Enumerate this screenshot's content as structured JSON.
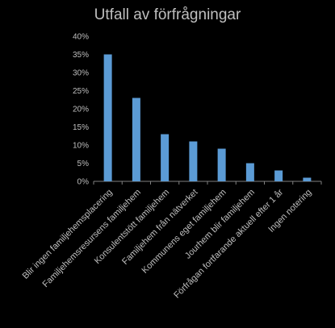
{
  "chart_data": {
    "type": "bar",
    "title": "Utfall av förfrågningar",
    "categories": [
      "Blir ingen familjehemsplacering",
      "Familjehemsresursens familjehem",
      "Konsulentstött familjehem",
      "Familjehem från nätverket",
      "Kommunens eget familjehem",
      "Jourhem blir familjehem",
      "Förfrågan fortfarande aktuell efter 1 år",
      "Ingen notering"
    ],
    "values": [
      35,
      23,
      13,
      11,
      9,
      5,
      3,
      1
    ],
    "value_unit": "%",
    "ylim": [
      0,
      40
    ],
    "yticks": [
      "0%",
      "5%",
      "10%",
      "15%",
      "20%",
      "25%",
      "30%",
      "35%",
      "40%"
    ],
    "ytick_values": [
      0,
      5,
      10,
      15,
      20,
      25,
      30,
      35,
      40
    ],
    "grid": false,
    "legend": "none",
    "colors": {
      "bar": "#5b9bd5",
      "background": "#000000",
      "text": "#bfbfbf",
      "axis": "#808080"
    }
  }
}
